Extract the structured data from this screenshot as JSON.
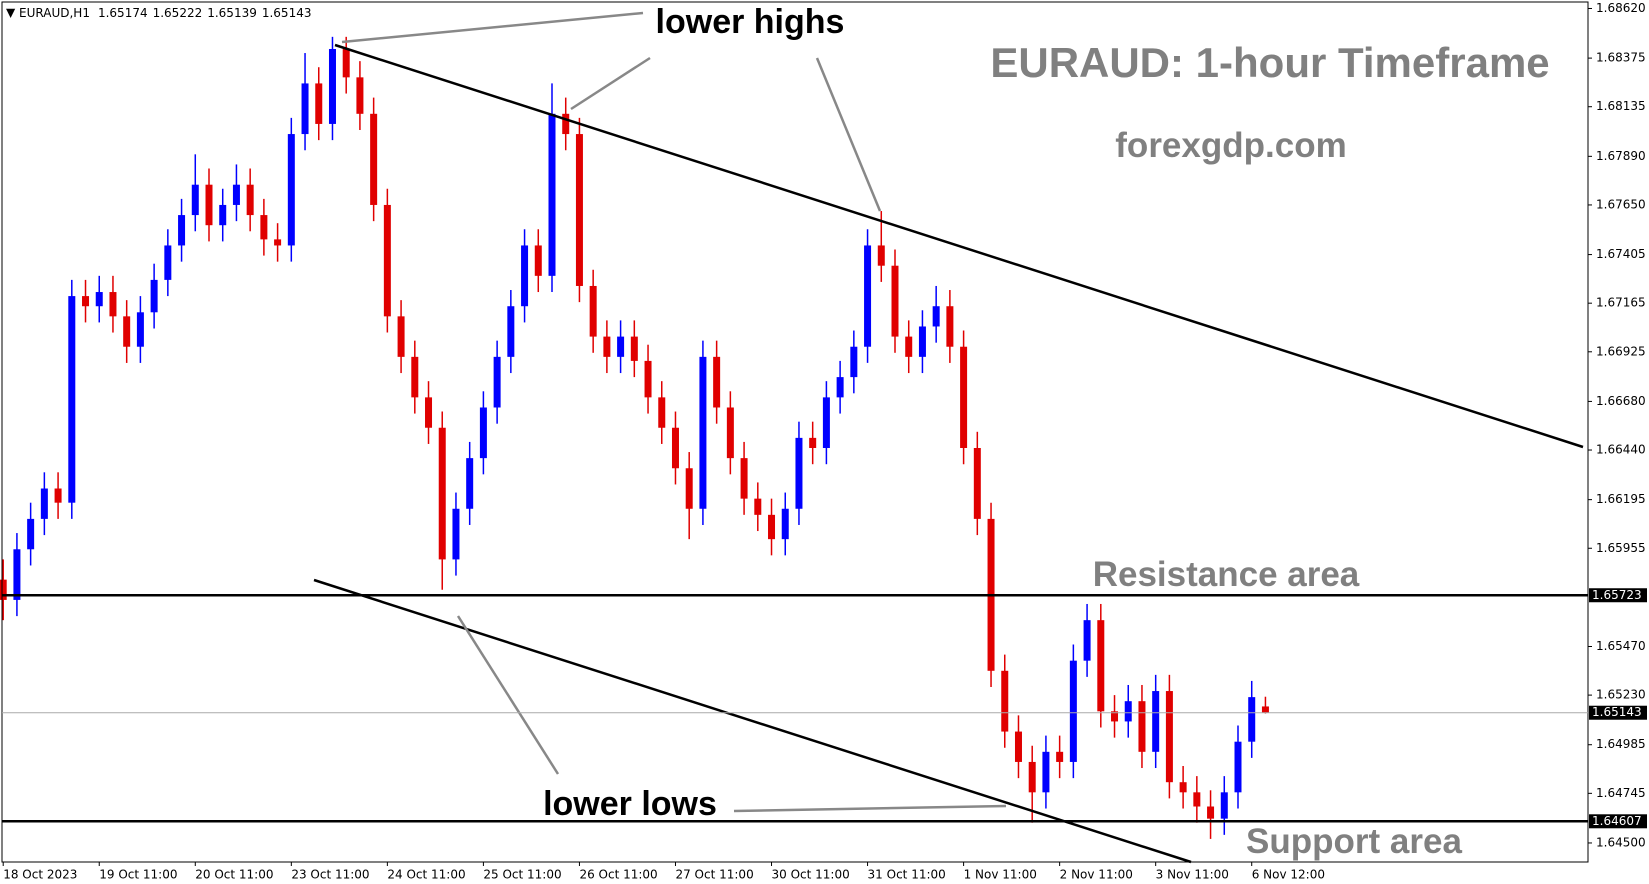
{
  "chart_data": {
    "type": "candlestick",
    "symbol": "EURAUD,H1",
    "title": "EURAUD: 1-hour Timeframe",
    "subtitle": "forexgdp.com",
    "annotations": [
      "lower highs",
      "lower lows"
    ],
    "categories": [
      "18 Oct 2023",
      null,
      null,
      null,
      null,
      null,
      null,
      "19 Oct 11:00",
      null,
      null,
      null,
      null,
      null,
      null,
      "20 Oct 11:00",
      null,
      null,
      null,
      null,
      null,
      null,
      "23 Oct 11:00",
      null,
      null,
      null,
      null,
      null,
      null,
      "24 Oct 11:00",
      null,
      null,
      null,
      null,
      null,
      null,
      "25 Oct 11:00",
      null,
      null,
      null,
      null,
      null,
      null,
      "26 Oct 11:00",
      null,
      null,
      null,
      null,
      null,
      null,
      "27 Oct 11:00",
      null,
      null,
      null,
      null,
      null,
      null,
      "30 Oct 11:00",
      null,
      null,
      null,
      null,
      null,
      null,
      "31 Oct 11:00",
      null,
      null,
      null,
      null,
      null,
      null,
      "1 Nov 11:00",
      null,
      null,
      null,
      null,
      null,
      null,
      "2 Nov 11:00",
      null,
      null,
      null,
      null,
      null,
      null,
      "3 Nov 11:00",
      null,
      null,
      null,
      null,
      null,
      null,
      "6 Nov 12:00",
      null
    ],
    "open": [
      1.658,
      1.657,
      1.6595,
      1.661,
      1.6625,
      1.6618,
      1.672,
      1.6715,
      1.6722,
      1.671,
      1.6695,
      1.6712,
      1.6728,
      1.6745,
      1.676,
      1.6775,
      1.6755,
      1.6765,
      1.6775,
      1.676,
      1.6748,
      1.6745,
      1.68,
      1.6825,
      1.6805,
      1.6842,
      1.6828,
      1.681,
      1.6765,
      1.671,
      1.669,
      1.667,
      1.6655,
      1.659,
      1.6615,
      1.664,
      1.6665,
      1.669,
      1.6715,
      1.6745,
      1.673,
      1.681,
      1.68,
      1.6725,
      1.67,
      1.669,
      1.67,
      1.6688,
      1.667,
      1.6655,
      1.6635,
      1.6615,
      1.669,
      1.6665,
      1.664,
      1.662,
      1.6612,
      1.66,
      1.6615,
      1.665,
      1.6645,
      1.667,
      1.668,
      1.6695,
      1.6745,
      1.6735,
      1.67,
      1.669,
      1.6705,
      1.6715,
      1.6695,
      1.6645,
      1.661,
      1.6535,
      1.6505,
      1.649,
      1.6475,
      1.6495,
      1.649,
      1.654,
      1.656,
      1.6515,
      1.651,
      1.652,
      1.6495,
      1.6525,
      1.648,
      1.6475,
      1.6468,
      1.6462,
      1.6475,
      1.65,
      1.65174
    ],
    "high": [
      1.659,
      1.6603,
      1.6618,
      1.6633,
      1.6633,
      1.6728,
      1.6728,
      1.673,
      1.673,
      1.6718,
      1.672,
      1.6736,
      1.6753,
      1.6768,
      1.679,
      1.6783,
      1.6773,
      1.6785,
      1.6783,
      1.6768,
      1.6756,
      1.6808,
      1.684,
      1.6833,
      1.6848,
      1.6848,
      1.6836,
      1.6818,
      1.6773,
      1.6718,
      1.6698,
      1.6678,
      1.6663,
      1.6623,
      1.6648,
      1.6673,
      1.6698,
      1.6723,
      1.6753,
      1.6753,
      1.6825,
      1.6818,
      1.6808,
      1.6733,
      1.6708,
      1.6708,
      1.6708,
      1.6696,
      1.6678,
      1.6663,
      1.6643,
      1.6698,
      1.6698,
      1.6673,
      1.6648,
      1.6628,
      1.662,
      1.6623,
      1.6658,
      1.6658,
      1.6678,
      1.6688,
      1.6703,
      1.6753,
      1.6762,
      1.6743,
      1.6708,
      1.6713,
      1.6725,
      1.6723,
      1.6703,
      1.6653,
      1.6618,
      1.6543,
      1.6513,
      1.6498,
      1.6503,
      1.6503,
      1.6548,
      1.6568,
      1.6568,
      1.6523,
      1.6528,
      1.6528,
      1.6533,
      1.6533,
      1.6488,
      1.6483,
      1.6476,
      1.6483,
      1.6508,
      1.653,
      1.65222
    ],
    "low": [
      1.656,
      1.6562,
      1.6587,
      1.6602,
      1.661,
      1.661,
      1.6707,
      1.6707,
      1.6702,
      1.6687,
      1.6687,
      1.6704,
      1.672,
      1.6737,
      1.6752,
      1.6747,
      1.6747,
      1.6757,
      1.6752,
      1.674,
      1.6737,
      1.6737,
      1.6792,
      1.6797,
      1.6797,
      1.682,
      1.6802,
      1.6757,
      1.6702,
      1.6682,
      1.6662,
      1.6647,
      1.6575,
      1.6582,
      1.6607,
      1.6632,
      1.6657,
      1.6682,
      1.6707,
      1.6722,
      1.6722,
      1.6792,
      1.6717,
      1.6692,
      1.6682,
      1.6682,
      1.668,
      1.6662,
      1.6647,
      1.6627,
      1.66,
      1.6607,
      1.6657,
      1.6632,
      1.6612,
      1.6604,
      1.6592,
      1.6592,
      1.6607,
      1.6637,
      1.6637,
      1.6662,
      1.6672,
      1.6687,
      1.6727,
      1.6692,
      1.6682,
      1.6682,
      1.6697,
      1.6687,
      1.6637,
      1.6602,
      1.6527,
      1.6497,
      1.6482,
      1.646,
      1.6467,
      1.6482,
      1.6482,
      1.6532,
      1.6507,
      1.6502,
      1.6502,
      1.6487,
      1.6487,
      1.6472,
      1.6467,
      1.646,
      1.6452,
      1.6454,
      1.6467,
      1.6492,
      1.65139
    ],
    "close": [
      1.657,
      1.6595,
      1.661,
      1.6625,
      1.6618,
      1.672,
      1.6715,
      1.6722,
      1.671,
      1.6695,
      1.6712,
      1.6728,
      1.6745,
      1.676,
      1.6775,
      1.6755,
      1.6765,
      1.6775,
      1.676,
      1.6748,
      1.6745,
      1.68,
      1.6825,
      1.6805,
      1.6842,
      1.6828,
      1.681,
      1.6765,
      1.671,
      1.669,
      1.667,
      1.6655,
      1.659,
      1.6615,
      1.664,
      1.6665,
      1.669,
      1.6715,
      1.6745,
      1.673,
      1.681,
      1.68,
      1.6725,
      1.67,
      1.669,
      1.67,
      1.6688,
      1.667,
      1.6655,
      1.6635,
      1.6615,
      1.669,
      1.6665,
      1.664,
      1.662,
      1.6612,
      1.66,
      1.6615,
      1.665,
      1.6645,
      1.667,
      1.668,
      1.6695,
      1.6745,
      1.6735,
      1.67,
      1.669,
      1.6705,
      1.6715,
      1.6695,
      1.6645,
      1.661,
      1.6535,
      1.6505,
      1.649,
      1.6475,
      1.6495,
      1.649,
      1.654,
      1.656,
      1.6515,
      1.651,
      1.652,
      1.6495,
      1.6525,
      1.648,
      1.6475,
      1.6468,
      1.6462,
      1.6475,
      1.65,
      1.6522,
      1.65143
    ],
    "up_color": "#0000ff",
    "down_color": "#e00000",
    "ylim": [
      1.64406,
      1.68652
    ],
    "yticks": [
      {
        "value": 1.6862,
        "label": "1.68620"
      },
      1.68375,
      1.68135,
      {
        "value": 1.6789,
        "label": "1.67890"
      },
      {
        "value": 1.6765,
        "label": "1.67650"
      },
      1.67405,
      1.67165,
      1.66925,
      {
        "value": 1.6668,
        "label": "1.66680"
      },
      {
        "value": 1.6644,
        "label": "1.66440"
      },
      1.66195,
      1.65955,
      {
        "value": 1.6547,
        "label": "1.65470"
      },
      {
        "value": 1.6523,
        "label": "1.65230"
      },
      1.64985,
      1.64745,
      {
        "value": 1.645,
        "label": "1.64500"
      }
    ],
    "levels": [
      {
        "name": "Resistance area",
        "value": 1.65723
      },
      {
        "name": "Support area",
        "value": 1.64607
      }
    ]
  }
}
